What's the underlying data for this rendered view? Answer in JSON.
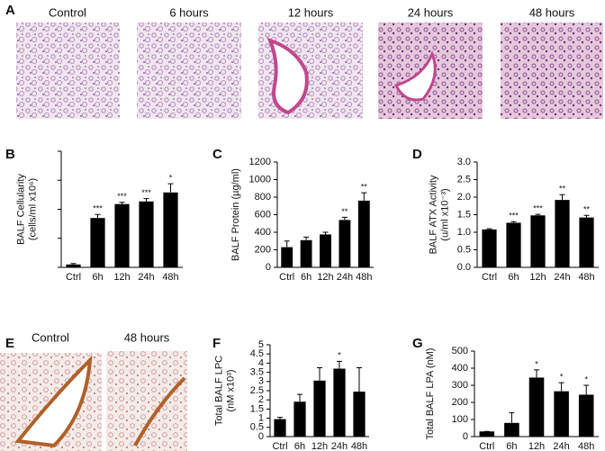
{
  "figure": {
    "images_top": {
      "panel": "A",
      "captions": [
        "Control",
        "6 hours",
        "12 hours",
        "24 hours",
        "48 hours"
      ]
    },
    "images_bottom": {
      "panel": "E",
      "captions": [
        "Control",
        "48 hours"
      ]
    }
  },
  "chart_data": [
    {
      "type": "bar",
      "panel": "B",
      "ylabel": [
        "BALF Cellularity",
        "(cells/ml x10⁶)"
      ],
      "categories": [
        "Ctrl",
        "6h",
        "12h",
        "24h",
        "48h"
      ],
      "values": [
        0.1,
        1.7,
        2.18,
        2.27,
        2.58
      ],
      "errors": [
        0.03,
        0.12,
        0.06,
        0.1,
        0.3
      ],
      "annotations": [
        null,
        "***",
        "***",
        "***",
        "*"
      ],
      "ylim": [
        0,
        4
      ],
      "yticks": [
        0,
        1,
        2,
        3,
        4
      ],
      "tick_labels": false,
      "color": "#000000"
    },
    {
      "type": "bar",
      "panel": "C",
      "ylabel": [
        "BALF Protein (µg/ml)"
      ],
      "categories": [
        "Ctrl",
        "6h",
        "12h",
        "24h",
        "48h"
      ],
      "values": [
        230,
        310,
        375,
        540,
        760
      ],
      "errors": [
        70,
        35,
        25,
        30,
        90
      ],
      "annotations": [
        null,
        null,
        null,
        "**",
        "**"
      ],
      "ylim": [
        0,
        1200
      ],
      "yticks": [
        0,
        200,
        400,
        600,
        800,
        1000,
        1200
      ],
      "tick_labels": true,
      "color": "#000000"
    },
    {
      "type": "bar",
      "panel": "D",
      "ylabel": [
        "BALF ATX Activity",
        "(u/ml x10⁻³)"
      ],
      "categories": [
        "Ctrl",
        "6h",
        "12h",
        "24h",
        "48h"
      ],
      "values": [
        1.08,
        1.27,
        1.48,
        1.92,
        1.42
      ],
      "errors": [
        0.02,
        0.03,
        0.03,
        0.15,
        0.06
      ],
      "annotations": [
        null,
        "***",
        "***",
        "**",
        "**"
      ],
      "ylim": [
        0,
        3
      ],
      "yticks": [
        {
          "value": 0,
          "label": "0.0"
        },
        0.5,
        {
          "value": 1,
          "label": "1.0"
        },
        1.5,
        {
          "value": 2,
          "label": "2.0"
        },
        2.5,
        {
          "value": 3,
          "label": "3.0"
        }
      ],
      "tick_labels": true,
      "color": "#000000"
    },
    {
      "type": "bar",
      "panel": "F",
      "ylabel": [
        "Total BALF LPC",
        "(nM x10³)"
      ],
      "categories": [
        "Ctrl",
        "6h",
        "12h",
        "24h",
        "48h"
      ],
      "values": [
        0.95,
        1.9,
        3.05,
        3.7,
        2.45
      ],
      "errors": [
        0.1,
        0.4,
        0.7,
        0.4,
        1.3
      ],
      "annotations": [
        null,
        null,
        null,
        "*",
        null
      ],
      "ylim": [
        0,
        5
      ],
      "yticks": [
        0,
        0.5,
        1,
        1.5,
        2,
        2.5,
        3,
        3.5,
        4,
        4.5,
        5
      ],
      "tick_labels": true,
      "color": "#000000"
    },
    {
      "type": "bar",
      "panel": "G",
      "ylabel": [
        "Total BALF LPA (nM)"
      ],
      "categories": [
        "Ctrl",
        "6h",
        "12h",
        "24h",
        "48h"
      ],
      "values": [
        30,
        80,
        345,
        265,
        245
      ],
      "errors": [
        0,
        60,
        45,
        50,
        55
      ],
      "annotations": [
        null,
        null,
        "*",
        "*",
        "*"
      ],
      "ylim": [
        0,
        500
      ],
      "yticks": [
        0,
        100,
        200,
        300,
        400,
        500
      ],
      "tick_labels": true,
      "color": "#000000"
    }
  ]
}
